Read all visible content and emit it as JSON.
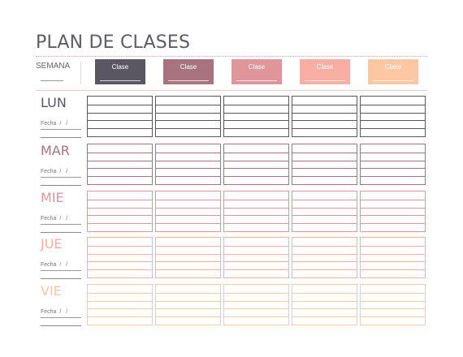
{
  "header": {
    "title": "PLAN DE CLASES",
    "semana_label": "SEMANA"
  },
  "classes": [
    {
      "label": "Clase",
      "color": "#5b5762"
    },
    {
      "label": "Clase",
      "color": "#a8737f"
    },
    {
      "label": "Clase",
      "color": "#e0959b"
    },
    {
      "label": "Clase",
      "color": "#f8aea3"
    },
    {
      "label": "Clase",
      "color": "#fdc7a4"
    }
  ],
  "days": [
    {
      "name": "LUN",
      "fecha": "Fecha  /   /",
      "color": "#5b5762"
    },
    {
      "name": "MAR",
      "fecha": "Fecha  /   /",
      "color": "#a8737f"
    },
    {
      "name": "MIE",
      "fecha": "Fecha  /   /",
      "color": "#e0959b"
    },
    {
      "name": "JUE",
      "fecha": "Fecha  /   /",
      "color": "#f8aea3"
    },
    {
      "name": "VIE",
      "fecha": "Fecha  /   /",
      "color": "#fdc7a4"
    }
  ]
}
